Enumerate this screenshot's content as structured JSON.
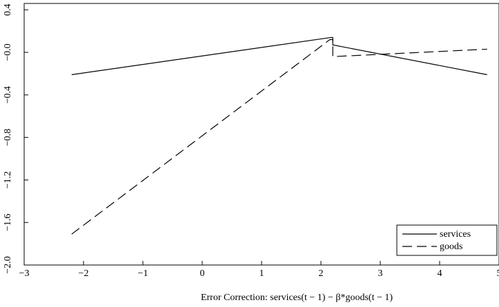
{
  "chart_data": {
    "type": "line",
    "x_label": "Error Correction: services(t − 1) − β*goods(t − 1)",
    "xlim": [
      -3,
      5
    ],
    "ylim": [
      -2.0,
      0.46
    ],
    "xticks": [
      {
        "value": -3,
        "label": "−3"
      },
      {
        "value": -2,
        "label": "−2"
      },
      {
        "value": -1,
        "label": "−1"
      },
      0,
      1,
      2,
      3,
      4,
      5
    ],
    "yticks": [
      {
        "value": -2.0,
        "label": "−2.0"
      },
      {
        "value": -1.6,
        "label": "−1.6"
      },
      {
        "value": -1.2,
        "label": "−1.2"
      },
      {
        "value": -0.8,
        "label": "−0.8"
      },
      {
        "value": -0.4,
        "label": "−0.4"
      },
      {
        "value": 0,
        "label": "−0.0"
      },
      {
        "value": 0.4,
        "label": "0.4"
      }
    ],
    "legend": "lower right",
    "series": [
      {
        "name": "services",
        "color": "#000000",
        "dash": "none",
        "x": [
          -2.2,
          2.17,
          2.2,
          2.2,
          4.8
        ],
        "values": [
          -0.21,
          0.14,
          0.14,
          0.07,
          -0.21
        ]
      },
      {
        "name": "goods",
        "color": "#000000",
        "dash": "14 7",
        "x": [
          -2.2,
          2.15,
          2.2,
          2.2,
          4.8
        ],
        "values": [
          -1.71,
          0.12,
          0.12,
          -0.04,
          0.03
        ]
      }
    ]
  }
}
